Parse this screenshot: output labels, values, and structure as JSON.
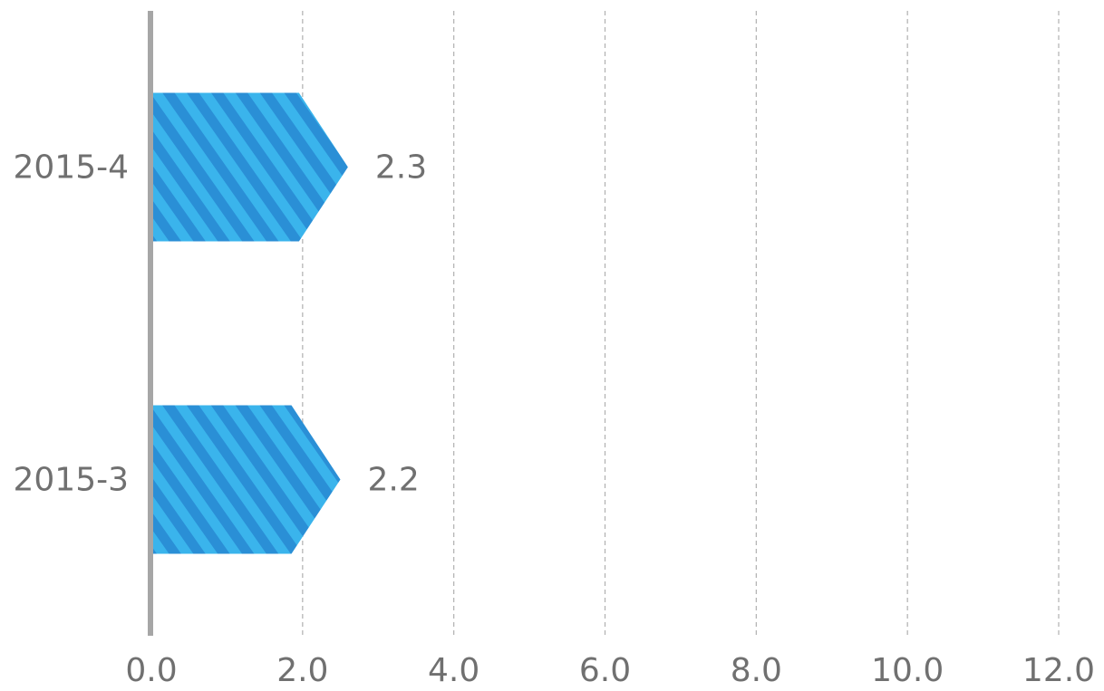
{
  "chart_data": {
    "type": "bar",
    "orientation": "horizontal",
    "categories": [
      "2015-4",
      "2015-3"
    ],
    "values": [
      2.3,
      2.2
    ],
    "data_labels": [
      "2.3",
      "2.2"
    ],
    "x_ticks": [
      "0.0",
      "2.0",
      "4.0",
      "6.0",
      "8.0",
      "10.0",
      "12.0"
    ],
    "xlim": [
      0,
      12
    ],
    "grid": "vertical-dashed",
    "legend": "none",
    "title": "",
    "xlabel": "",
    "ylabel": "",
    "colors": {
      "bar_fill": "#3ab4ec",
      "bar_stripe": "#2a8fd6",
      "grid": "#b0b0b0",
      "axis": "#a6a6a6",
      "text": "#707070"
    },
    "bar_style": "diagonal-striped-arrow"
  }
}
